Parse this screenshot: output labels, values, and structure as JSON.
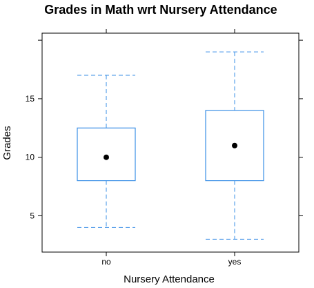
{
  "chart_data": {
    "type": "boxplot",
    "title": "Grades in Math wrt Nursery Attendance",
    "xlabel": "Nursery Attendance",
    "ylabel": "Grades",
    "categories": [
      "no",
      "yes"
    ],
    "boxes": [
      {
        "category": "no",
        "whisker_low": 4,
        "q1": 8,
        "median": 10,
        "q3": 12.5,
        "whisker_high": 17
      },
      {
        "category": "yes",
        "whisker_low": 3,
        "q1": 8,
        "median": 11,
        "q3": 14,
        "whisker_high": 19
      }
    ],
    "y_ticks": [
      5,
      10,
      15
    ],
    "ylim": [
      1.9,
      20.6
    ],
    "grid": false,
    "colors": {
      "box": "#3a8fe6",
      "median": "#000000",
      "frame": "#000000"
    }
  }
}
